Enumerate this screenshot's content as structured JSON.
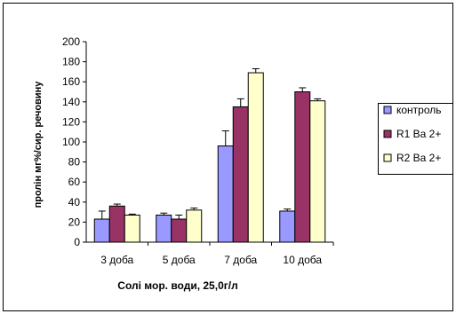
{
  "chart_data": {
    "type": "bar",
    "categories": [
      "3 доба",
      "5 доба",
      "7 доба",
      "10 доба"
    ],
    "series": [
      {
        "name": "контроль",
        "color": "#9999FF",
        "values": [
          23,
          27,
          96,
          31
        ],
        "errors": [
          8,
          2,
          15,
          2
        ]
      },
      {
        "name": "R1 Ba 2+",
        "color": "#993366",
        "values": [
          36,
          23,
          135,
          150
        ],
        "errors": [
          2,
          4,
          8,
          4
        ]
      },
      {
        "name": "R2 Ba 2+",
        "color": "#FFFFCC",
        "values": [
          27,
          32,
          169,
          141
        ],
        "errors": [
          1,
          2,
          4,
          2
        ]
      }
    ],
    "xlabel": "Солі мор. води, 25,0г/л",
    "ylabel": "пролін мг%/сир. речовину",
    "ylim": [
      0,
      200
    ],
    "yticks": [
      0,
      20,
      40,
      60,
      80,
      100,
      120,
      140,
      160,
      180,
      200
    ],
    "grid": false,
    "legend": "right"
  }
}
